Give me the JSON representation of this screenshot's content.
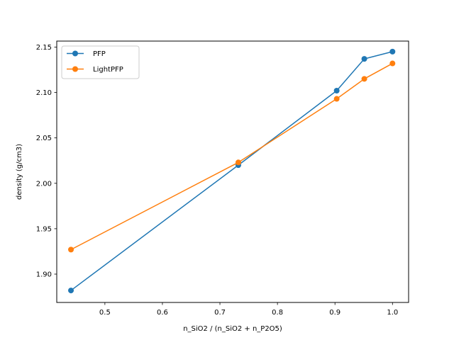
{
  "chart_data": {
    "type": "line",
    "title": "",
    "xlabel": "n_SiO2 / (n_SiO2 + n_P2O5)",
    "ylabel": "density (g/cm3)",
    "xlim": [
      0.4163,
      1.028
    ],
    "ylim": [
      1.8688,
      2.1566
    ],
    "grid": false,
    "legend_position": "upper left",
    "x": [
      0.441,
      0.732,
      0.903,
      0.951,
      1.0
    ],
    "series": [
      {
        "name": "PFP",
        "color": "#1f77b4",
        "values": [
          1.882,
          2.02,
          2.102,
          2.137,
          2.145
        ]
      },
      {
        "name": "LightPFP",
        "color": "#ff7f0e",
        "values": [
          1.927,
          2.023,
          2.093,
          2.115,
          2.132
        ]
      }
    ],
    "xticks": [
      0.5,
      0.6,
      0.7,
      0.8,
      0.9,
      1.0
    ],
    "xtick_labels": [
      "0.5",
      "0.6",
      "0.7",
      "0.8",
      "0.9",
      "1.0"
    ],
    "yticks": [
      1.9,
      1.95,
      2.0,
      2.05,
      2.1,
      2.15
    ],
    "ytick_labels": [
      "1.90",
      "1.95",
      "2.00",
      "2.05",
      "2.10",
      "2.15"
    ]
  }
}
